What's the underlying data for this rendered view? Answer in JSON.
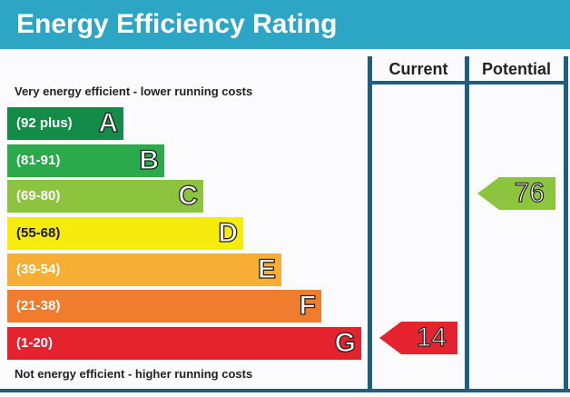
{
  "title": "Energy Efficiency Rating",
  "columns": {
    "current": "Current",
    "potential": "Potential"
  },
  "captions": {
    "top": "Very energy efficient - lower running costs",
    "bottom": "Not energy efficient - higher running costs"
  },
  "bands": [
    {
      "range": "(92 plus)",
      "letter": "A",
      "color": "#138c48"
    },
    {
      "range": "(81-91)",
      "letter": "B",
      "color": "#2aaa4a"
    },
    {
      "range": "(69-80)",
      "letter": "C",
      "color": "#8cc43f"
    },
    {
      "range": "(55-68)",
      "letter": "D",
      "color": "#f5eb0c"
    },
    {
      "range": "(39-54)",
      "letter": "E",
      "color": "#f6ae35"
    },
    {
      "range": "(21-38)",
      "letter": "F",
      "color": "#ef7d2d"
    },
    {
      "range": "(1-20)",
      "letter": "G",
      "color": "#e5232f"
    }
  ],
  "ratings": {
    "current": {
      "value": "14",
      "band": "G",
      "color": "#e5232f"
    },
    "potential": {
      "value": "76",
      "band": "C",
      "color": "#8cc43f"
    }
  },
  "colors": {
    "header": "#2ca6c4",
    "frame": "#1c5f80"
  }
}
